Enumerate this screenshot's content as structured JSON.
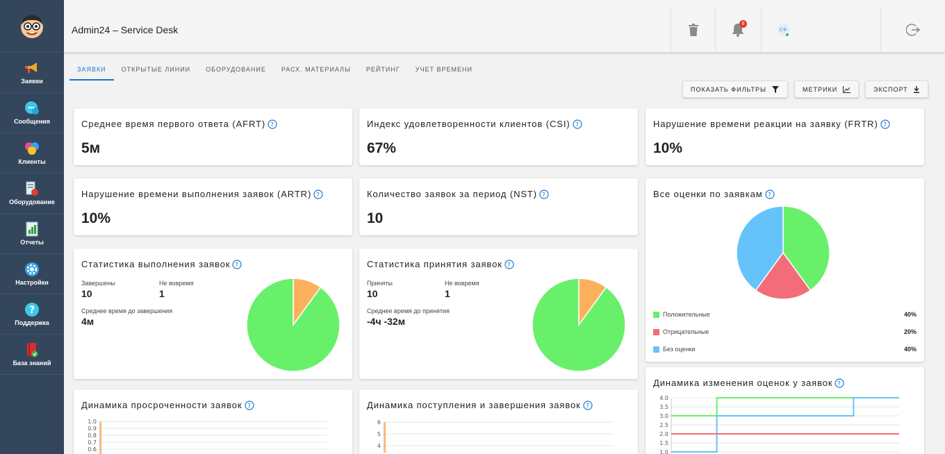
{
  "header": {
    "title": "Admin24 – Service Desk",
    "notification_count": "8",
    "avatar_initials": "СФ"
  },
  "sidebar": {
    "items": [
      {
        "label": "Заявки",
        "icon": "megaphone-icon"
      },
      {
        "label": "Сообщения",
        "icon": "chat-bubble-icon"
      },
      {
        "label": "Клиенты",
        "icon": "clients-icon"
      },
      {
        "label": "Оборудование",
        "icon": "equipment-icon"
      },
      {
        "label": "Отчеты",
        "icon": "report-icon"
      },
      {
        "label": "Настройки",
        "icon": "gear-icon"
      },
      {
        "label": "Поддержка",
        "icon": "help-circle-icon"
      },
      {
        "label": "База знаний",
        "icon": "book-icon"
      }
    ]
  },
  "tabs": [
    {
      "label": "ЗАЯВКИ",
      "active": true
    },
    {
      "label": "ОТКРЫТЫЕ ЛИНИИ"
    },
    {
      "label": "ОБОРУДОВАНИЕ"
    },
    {
      "label": "РАСХ. МАТЕРИАЛЫ"
    },
    {
      "label": "РЕЙТИНГ"
    },
    {
      "label": "УЧЕТ ВРЕМЕНИ"
    }
  ],
  "toolbar": {
    "filters_label": "ПОКАЗАТЬ ФИЛЬТРЫ",
    "metrics_label": "МЕТРИКИ",
    "export_label": "ЭКСПОРТ"
  },
  "cards": {
    "afrt": {
      "title": "Среднее время первого ответа (AFRT)",
      "value": "5м"
    },
    "csi": {
      "title": "Индекс удовлетворенности клиентов (CSI)",
      "value": "67%"
    },
    "frtr": {
      "title": "Нарушение времени реакции на заявку (FRTR)",
      "value": "10%"
    },
    "artr": {
      "title": "Нарушение времени выполнения заявок (ARTR)",
      "value": "10%"
    },
    "nst": {
      "title": "Количество заявок за период (NST)",
      "value": "10"
    },
    "completion": {
      "title": "Статистика выполнения заявок",
      "done_label": "Завершены",
      "done_value": "10",
      "late_label": "Не вовремя",
      "late_value": "1",
      "avg_label": "Среднее время до завершения",
      "avg_value": "4м",
      "on_time_share": 0.9
    },
    "acceptance": {
      "title": "Статистика принятия заявок",
      "accepted_label": "Приняты",
      "accepted_value": "10",
      "late_label": "Не вовремя",
      "late_value": "1",
      "avg_label": "Среднее время до принятия",
      "avg_value": "-4ч -32м",
      "on_time_share": 0.9
    },
    "ratings": {
      "title": "Все оценки по заявкам",
      "items": [
        {
          "label": "Положительные",
          "pct": "40%",
          "share": 0.4,
          "color": "#69f06b"
        },
        {
          "label": "Отрицательные",
          "pct": "20%",
          "share": 0.2,
          "color": "#f26d78"
        },
        {
          "label": "Без оценки",
          "pct": "40%",
          "share": 0.4,
          "color": "#65c3fa"
        }
      ]
    },
    "overdue_dynamics": {
      "title": "Динамика просроченности заявок"
    },
    "inflow_dynamics": {
      "title": "Динамика поступления и завершения заявок"
    },
    "rating_dynamics": {
      "title": "Динамика изменения оценок у заявок"
    }
  },
  "colors": {
    "accent": "#1976d2",
    "sidebar": "#34465c",
    "pie_main": "#69f06b",
    "pie_late": "#fbb15b"
  },
  "chart_data": [
    {
      "type": "line",
      "title": "Динамика просроченности заявок",
      "yticks": [
        "1.0",
        "0.9",
        "0.8",
        "0.7",
        "0.6"
      ],
      "ylim": [
        0.6,
        1.0
      ]
    },
    {
      "type": "line",
      "title": "Динамика поступления и завершения заявок",
      "yticks": [
        "6",
        "5",
        "4"
      ],
      "ylim": [
        4,
        6
      ]
    },
    {
      "type": "line",
      "title": "Динамика изменения оценок у заявок",
      "yticks": [
        "4.0",
        "3.5",
        "3.0",
        "2.5",
        "2.0",
        "1.5",
        "1.0"
      ],
      "ylim": [
        1.0,
        4.0
      ],
      "x": [
        0,
        1,
        2,
        3,
        4,
        5,
        6,
        7,
        8,
        9,
        10
      ],
      "series": [
        {
          "color": "#69f06b",
          "values": [
            3.0,
            3.0,
            4.0,
            4.0,
            4.0,
            4.0,
            4.0,
            4.0,
            4.0,
            4.0,
            4.0
          ]
        },
        {
          "color": "#65c3fa",
          "values": [
            1.0,
            1.0,
            3.0,
            3.0,
            3.0,
            3.0,
            3.0,
            3.0,
            4.0,
            4.0,
            4.0
          ]
        },
        {
          "color": "#f26d78",
          "values": [
            2.0,
            2.0,
            2.0,
            2.0,
            2.0,
            2.0,
            2.0,
            2.0,
            2.0,
            2.0,
            2.0
          ]
        }
      ]
    }
  ]
}
